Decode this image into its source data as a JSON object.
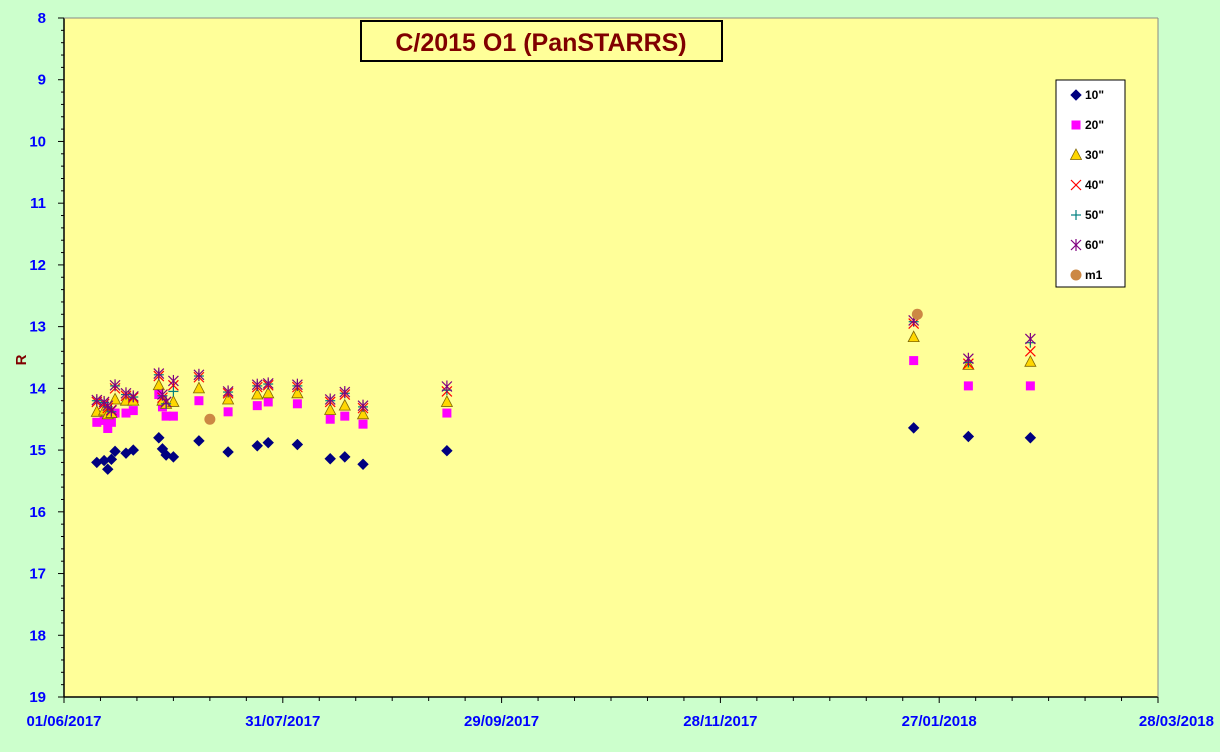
{
  "chart_data": {
    "type": "scatter",
    "title": "C/2015 O1 (PanSTARRS)",
    "xlabel": "",
    "ylabel": "R",
    "x_axis": {
      "type": "date",
      "min": "2017-06-01",
      "max": "2018-03-28",
      "tick_labels": [
        "01/06/2017",
        "31/07/2017",
        "29/09/2017",
        "28/11/2017",
        "27/01/2018",
        "28/03/2018"
      ],
      "tick_dates": [
        "2017-06-01",
        "2017-07-31",
        "2017-09-29",
        "2017-11-28",
        "2018-01-27",
        "2018-03-28"
      ]
    },
    "y_axis": {
      "min": 8,
      "max": 19,
      "reversed": true,
      "tick_labels": [
        "8",
        "9",
        "10",
        "11",
        "12",
        "13",
        "14",
        "15",
        "16",
        "17",
        "18",
        "19"
      ]
    },
    "grid": false,
    "legend_position": "top-right",
    "series": [
      {
        "name": "10\"",
        "marker": "diamond",
        "color": "#000080",
        "points": [
          {
            "x": "2017-06-10",
            "y": 15.2
          },
          {
            "x": "2017-06-12",
            "y": 15.17
          },
          {
            "x": "2017-06-13",
            "y": 15.31
          },
          {
            "x": "2017-06-14",
            "y": 15.15
          },
          {
            "x": "2017-06-15",
            "y": 15.02
          },
          {
            "x": "2017-06-18",
            "y": 15.05
          },
          {
            "x": "2017-06-20",
            "y": 15.0
          },
          {
            "x": "2017-06-27",
            "y": 14.8
          },
          {
            "x": "2017-06-28",
            "y": 14.98
          },
          {
            "x": "2017-06-29",
            "y": 15.08
          },
          {
            "x": "2017-07-01",
            "y": 15.11
          },
          {
            "x": "2017-07-08",
            "y": 14.85
          },
          {
            "x": "2017-07-16",
            "y": 15.03
          },
          {
            "x": "2017-07-24",
            "y": 14.93
          },
          {
            "x": "2017-07-27",
            "y": 14.88
          },
          {
            "x": "2017-08-04",
            "y": 14.91
          },
          {
            "x": "2017-08-13",
            "y": 15.14
          },
          {
            "x": "2017-08-17",
            "y": 15.11
          },
          {
            "x": "2017-08-22",
            "y": 15.23
          },
          {
            "x": "2017-09-14",
            "y": 15.01
          },
          {
            "x": "2018-01-20",
            "y": 14.64
          },
          {
            "x": "2018-02-04",
            "y": 14.78
          },
          {
            "x": "2018-02-21",
            "y": 14.8
          }
        ]
      },
      {
        "name": "20\"",
        "marker": "square",
        "color": "#ff00ff",
        "points": [
          {
            "x": "2017-06-10",
            "y": 14.55
          },
          {
            "x": "2017-06-12",
            "y": 14.52
          },
          {
            "x": "2017-06-13",
            "y": 14.65
          },
          {
            "x": "2017-06-14",
            "y": 14.55
          },
          {
            "x": "2017-06-15",
            "y": 14.4
          },
          {
            "x": "2017-06-18",
            "y": 14.4
          },
          {
            "x": "2017-06-20",
            "y": 14.36
          },
          {
            "x": "2017-06-27",
            "y": 14.1
          },
          {
            "x": "2017-06-28",
            "y": 14.3
          },
          {
            "x": "2017-06-29",
            "y": 14.45
          },
          {
            "x": "2017-07-01",
            "y": 14.45
          },
          {
            "x": "2017-07-08",
            "y": 14.2
          },
          {
            "x": "2017-07-16",
            "y": 14.38
          },
          {
            "x": "2017-07-24",
            "y": 14.28
          },
          {
            "x": "2017-07-27",
            "y": 14.22
          },
          {
            "x": "2017-08-04",
            "y": 14.25
          },
          {
            "x": "2017-08-13",
            "y": 14.5
          },
          {
            "x": "2017-08-17",
            "y": 14.45
          },
          {
            "x": "2017-08-22",
            "y": 14.58
          },
          {
            "x": "2017-09-14",
            "y": 14.4
          },
          {
            "x": "2018-01-20",
            "y": 13.55
          },
          {
            "x": "2018-02-04",
            "y": 13.96
          },
          {
            "x": "2018-02-21",
            "y": 13.96
          }
        ]
      },
      {
        "name": "30\"",
        "marker": "triangle",
        "color": "#ffd700",
        "points": [
          {
            "x": "2017-06-10",
            "y": 14.38
          },
          {
            "x": "2017-06-12",
            "y": 14.36
          },
          {
            "x": "2017-06-13",
            "y": 14.42
          },
          {
            "x": "2017-06-14",
            "y": 14.4
          },
          {
            "x": "2017-06-15",
            "y": 14.18
          },
          {
            "x": "2017-06-18",
            "y": 14.2
          },
          {
            "x": "2017-06-20",
            "y": 14.2
          },
          {
            "x": "2017-06-27",
            "y": 13.95
          },
          {
            "x": "2017-06-28",
            "y": 14.2
          },
          {
            "x": "2017-06-29",
            "y": 14.25
          },
          {
            "x": "2017-07-01",
            "y": 14.22
          },
          {
            "x": "2017-07-08",
            "y": 14.0
          },
          {
            "x": "2017-07-16",
            "y": 14.18
          },
          {
            "x": "2017-07-24",
            "y": 14.1
          },
          {
            "x": "2017-07-27",
            "y": 14.08
          },
          {
            "x": "2017-08-04",
            "y": 14.08
          },
          {
            "x": "2017-08-13",
            "y": 14.35
          },
          {
            "x": "2017-08-17",
            "y": 14.28
          },
          {
            "x": "2017-08-22",
            "y": 14.42
          },
          {
            "x": "2017-09-14",
            "y": 14.22
          },
          {
            "x": "2018-01-20",
            "y": 13.17
          },
          {
            "x": "2018-02-04",
            "y": 13.62
          },
          {
            "x": "2018-02-21",
            "y": 13.57
          }
        ]
      },
      {
        "name": "40\"",
        "marker": "x",
        "color": "#ff0000",
        "points": [
          {
            "x": "2017-06-10",
            "y": 14.22
          },
          {
            "x": "2017-06-12",
            "y": 14.25
          },
          {
            "x": "2017-06-13",
            "y": 14.32
          },
          {
            "x": "2017-06-14",
            "y": 14.35
          },
          {
            "x": "2017-06-15",
            "y": 14.0
          },
          {
            "x": "2017-06-18",
            "y": 14.12
          },
          {
            "x": "2017-06-20",
            "y": 14.15
          },
          {
            "x": "2017-06-27",
            "y": 13.8
          },
          {
            "x": "2017-06-28",
            "y": 14.15
          },
          {
            "x": "2017-06-29",
            "y": 14.22
          },
          {
            "x": "2017-07-01",
            "y": 13.95
          },
          {
            "x": "2017-07-08",
            "y": 13.82
          },
          {
            "x": "2017-07-16",
            "y": 14.08
          },
          {
            "x": "2017-07-24",
            "y": 13.98
          },
          {
            "x": "2017-07-27",
            "y": 13.95
          },
          {
            "x": "2017-08-04",
            "y": 13.98
          },
          {
            "x": "2017-08-13",
            "y": 14.22
          },
          {
            "x": "2017-08-17",
            "y": 14.1
          },
          {
            "x": "2017-08-22",
            "y": 14.32
          },
          {
            "x": "2017-09-14",
            "y": 14.05
          },
          {
            "x": "2018-01-20",
            "y": 12.95
          },
          {
            "x": "2018-02-04",
            "y": 13.6
          },
          {
            "x": "2018-02-21",
            "y": 13.4
          }
        ]
      },
      {
        "name": "50\"",
        "marker": "plus",
        "color": "#008080",
        "points": [
          {
            "x": "2017-06-10",
            "y": 14.2
          },
          {
            "x": "2017-06-12",
            "y": 14.23
          },
          {
            "x": "2017-06-13",
            "y": 14.3
          },
          {
            "x": "2017-06-14",
            "y": 14.38
          },
          {
            "x": "2017-06-15",
            "y": 13.96
          },
          {
            "x": "2017-06-18",
            "y": 14.1
          },
          {
            "x": "2017-06-20",
            "y": 14.14
          },
          {
            "x": "2017-06-27",
            "y": 13.78
          },
          {
            "x": "2017-06-28",
            "y": 14.12
          },
          {
            "x": "2017-06-29",
            "y": 14.25
          },
          {
            "x": "2017-07-01",
            "y": 14.05
          },
          {
            "x": "2017-07-08",
            "y": 13.8
          },
          {
            "x": "2017-07-16",
            "y": 14.06
          },
          {
            "x": "2017-07-24",
            "y": 13.96
          },
          {
            "x": "2017-07-27",
            "y": 13.93
          },
          {
            "x": "2017-08-04",
            "y": 13.96
          },
          {
            "x": "2017-08-13",
            "y": 14.2
          },
          {
            "x": "2017-08-17",
            "y": 14.08
          },
          {
            "x": "2017-08-22",
            "y": 14.3
          },
          {
            "x": "2017-09-14",
            "y": 14.03
          },
          {
            "x": "2018-01-20",
            "y": 12.92
          },
          {
            "x": "2018-02-04",
            "y": 13.58
          },
          {
            "x": "2018-02-21",
            "y": 13.26
          }
        ]
      },
      {
        "name": "60\"",
        "marker": "asterisk",
        "color": "#800080",
        "points": [
          {
            "x": "2017-06-10",
            "y": 14.19
          },
          {
            "x": "2017-06-12",
            "y": 14.22
          },
          {
            "x": "2017-06-13",
            "y": 14.28
          },
          {
            "x": "2017-06-14",
            "y": 14.36
          },
          {
            "x": "2017-06-15",
            "y": 13.95
          },
          {
            "x": "2017-06-18",
            "y": 14.08
          },
          {
            "x": "2017-06-20",
            "y": 14.13
          },
          {
            "x": "2017-06-27",
            "y": 13.76
          },
          {
            "x": "2017-06-28",
            "y": 14.1
          },
          {
            "x": "2017-06-29",
            "y": 14.22
          },
          {
            "x": "2017-07-01",
            "y": 13.88
          },
          {
            "x": "2017-07-08",
            "y": 13.78
          },
          {
            "x": "2017-07-16",
            "y": 14.05
          },
          {
            "x": "2017-07-24",
            "y": 13.94
          },
          {
            "x": "2017-07-27",
            "y": 13.92
          },
          {
            "x": "2017-08-04",
            "y": 13.94
          },
          {
            "x": "2017-08-13",
            "y": 14.18
          },
          {
            "x": "2017-08-17",
            "y": 14.06
          },
          {
            "x": "2017-08-22",
            "y": 14.28
          },
          {
            "x": "2017-09-14",
            "y": 13.97
          },
          {
            "x": "2018-01-20",
            "y": 12.9
          },
          {
            "x": "2018-02-04",
            "y": 13.52
          },
          {
            "x": "2018-02-21",
            "y": 13.2
          }
        ]
      },
      {
        "name": "m1",
        "marker": "circle",
        "color": "#cc8844",
        "points": [
          {
            "x": "2017-07-11",
            "y": 14.5
          },
          {
            "x": "2018-01-21",
            "y": 12.8
          }
        ]
      }
    ]
  }
}
